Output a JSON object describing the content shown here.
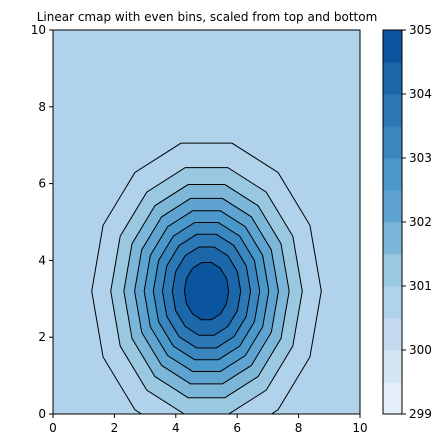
{
  "chart_data": {
    "type": "contour",
    "title": "Linear cmap with even bins, scaled from top and bottom",
    "xlabel": "",
    "ylabel": "",
    "xlim": [
      0,
      10
    ],
    "ylim": [
      0,
      10
    ],
    "x_ticks": [
      0,
      2,
      4,
      6,
      8,
      10
    ],
    "y_ticks": [
      0,
      2,
      4,
      6,
      8,
      10
    ],
    "field": {
      "kind": "gaussian",
      "center": [
        5,
        3.2
      ],
      "sigma_x": 1.75,
      "sigma_y": 1.85,
      "base": 300.0,
      "peak": 304.9
    },
    "contour_levels": [
      300.5,
      301.0,
      301.5,
      302.0,
      302.5,
      303.0,
      303.5,
      304.0,
      304.5
    ],
    "background_color": "#b0d2ea",
    "colorbar": {
      "range": [
        299,
        305
      ],
      "ticks": [
        299,
        300,
        301,
        302,
        303,
        304,
        305
      ],
      "bands": [
        {
          "from": 299.0,
          "to": 299.5,
          "color": "#e3eef8"
        },
        {
          "from": 299.5,
          "to": 300.0,
          "color": "#d4e5f4"
        },
        {
          "from": 300.0,
          "to": 300.5,
          "color": "#c4dbef"
        },
        {
          "from": 300.5,
          "to": 301.0,
          "color": "#b0d2ea"
        },
        {
          "from": 301.0,
          "to": 301.5,
          "color": "#9ac8e0"
        },
        {
          "from": 301.5,
          "to": 302.0,
          "color": "#7cb7da"
        },
        {
          "from": 302.0,
          "to": 302.5,
          "color": "#5fa4d0"
        },
        {
          "from": 302.5,
          "to": 303.0,
          "color": "#4a98c9"
        },
        {
          "from": 303.0,
          "to": 303.5,
          "color": "#3a86bf"
        },
        {
          "from": 303.5,
          "to": 304.0,
          "color": "#2b78b5"
        },
        {
          "from": 304.0,
          "to": 304.5,
          "color": "#1c67a9"
        },
        {
          "from": 304.5,
          "to": 305.0,
          "color": "#0b559f"
        }
      ]
    }
  }
}
